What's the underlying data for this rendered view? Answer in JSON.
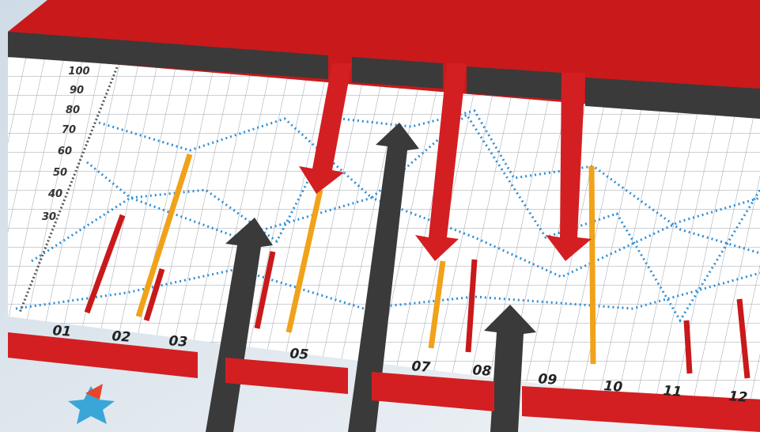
{
  "y_axis": {
    "labels": [
      "100",
      "90",
      "80",
      "70",
      "60",
      "50",
      "40",
      "30"
    ]
  },
  "x_axis": {
    "labels": [
      "01",
      "02",
      "03",
      "05",
      "07",
      "08",
      "09",
      "10",
      "11",
      "12"
    ]
  }
}
